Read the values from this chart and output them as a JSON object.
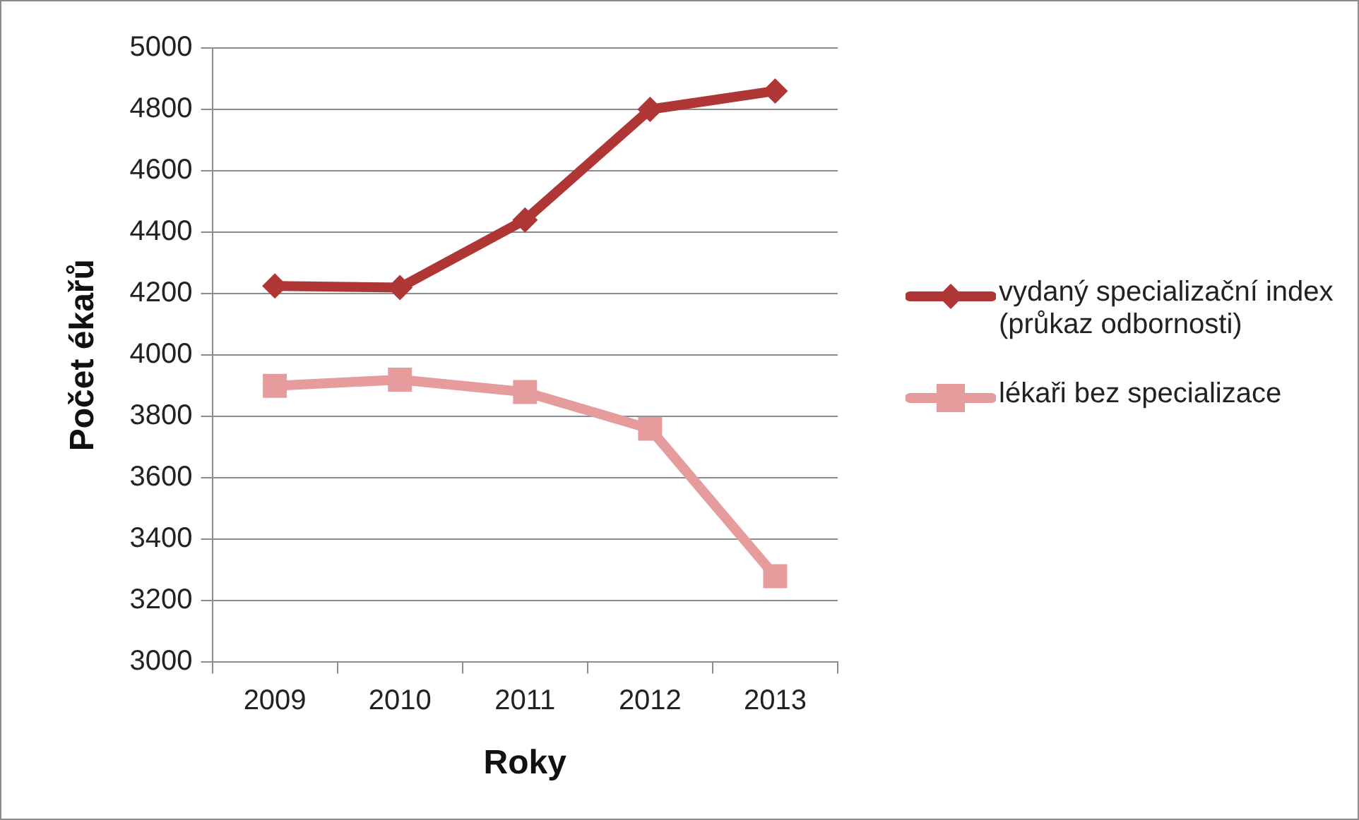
{
  "chart_data": {
    "type": "line",
    "xlabel": "Roky",
    "ylabel": "Počet ékařů",
    "categories": [
      "2009",
      "2010",
      "2011",
      "2012",
      "2013"
    ],
    "series": [
      {
        "name": "vydaný specializační index (průkaz odbornosti)",
        "color": "#b03535",
        "marker": "diamond",
        "values": [
          4225,
          4220,
          4440,
          4800,
          4860
        ]
      },
      {
        "name": "lékaři bez specializace",
        "color": "#e69c9c",
        "marker": "square",
        "values": [
          3900,
          3920,
          3880,
          3760,
          3280
        ]
      }
    ],
    "ylim": [
      3000,
      5000
    ],
    "yticks": [
      3000,
      3200,
      3400,
      3600,
      3800,
      4000,
      4200,
      4400,
      4600,
      4800,
      5000
    ],
    "grid": "y",
    "legend": "right",
    "line_style": "solid"
  }
}
